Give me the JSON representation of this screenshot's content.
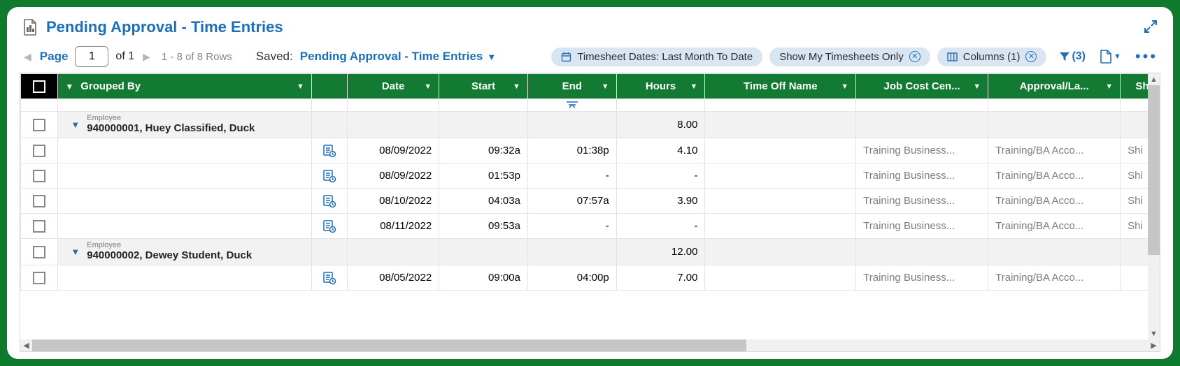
{
  "title": "Pending Approval - Time Entries",
  "pager": {
    "page_label": "Page",
    "page_value": "1",
    "of_label": "of",
    "total_pages": "1",
    "rows_range": "1 - 8 of 8 Rows"
  },
  "saved": {
    "label": "Saved:",
    "value": "Pending Approval - Time Entries"
  },
  "chips": {
    "dates": "Timesheet Dates: Last Month To Date",
    "mine": "Show My Timesheets Only",
    "columns": "Columns (1)"
  },
  "filter_count": "(3)",
  "columns": {
    "grouped_by": "Grouped By",
    "date": "Date",
    "start": "Start",
    "end": "End",
    "hours": "Hours",
    "time_off": "Time Off Name",
    "job": "Job Cost Cen...",
    "approval": "Approval/La...",
    "shift": "Shi"
  },
  "employee_label": "Employee",
  "groups": [
    {
      "name": "940000001, Huey Classified, Duck",
      "hours_total": "8.00",
      "rows": [
        {
          "date": "08/09/2022",
          "start": "09:32a",
          "end": "01:38p",
          "hours": "4.10",
          "time_off": "",
          "job": "Training Business...",
          "approval": "Training/BA Acco...",
          "shift": "Shi"
        },
        {
          "date": "08/09/2022",
          "start": "01:53p",
          "end": "-",
          "hours": "-",
          "time_off": "",
          "job": "Training Business...",
          "approval": "Training/BA Acco...",
          "shift": "Shi"
        },
        {
          "date": "08/10/2022",
          "start": "04:03a",
          "end": "07:57a",
          "hours": "3.90",
          "time_off": "",
          "job": "Training Business...",
          "approval": "Training/BA Acco...",
          "shift": "Shi"
        },
        {
          "date": "08/11/2022",
          "start": "09:53a",
          "end": "-",
          "hours": "-",
          "time_off": "",
          "job": "Training Business...",
          "approval": "Training/BA Acco...",
          "shift": "Shi"
        }
      ]
    },
    {
      "name": "940000002, Dewey Student, Duck",
      "hours_total": "12.00",
      "rows": [
        {
          "date": "08/05/2022",
          "start": "09:00a",
          "end": "04:00p",
          "hours": "7.00",
          "time_off": "",
          "job": "Training Business...",
          "approval": "Training/BA Acco...",
          "shift": ""
        }
      ]
    }
  ]
}
